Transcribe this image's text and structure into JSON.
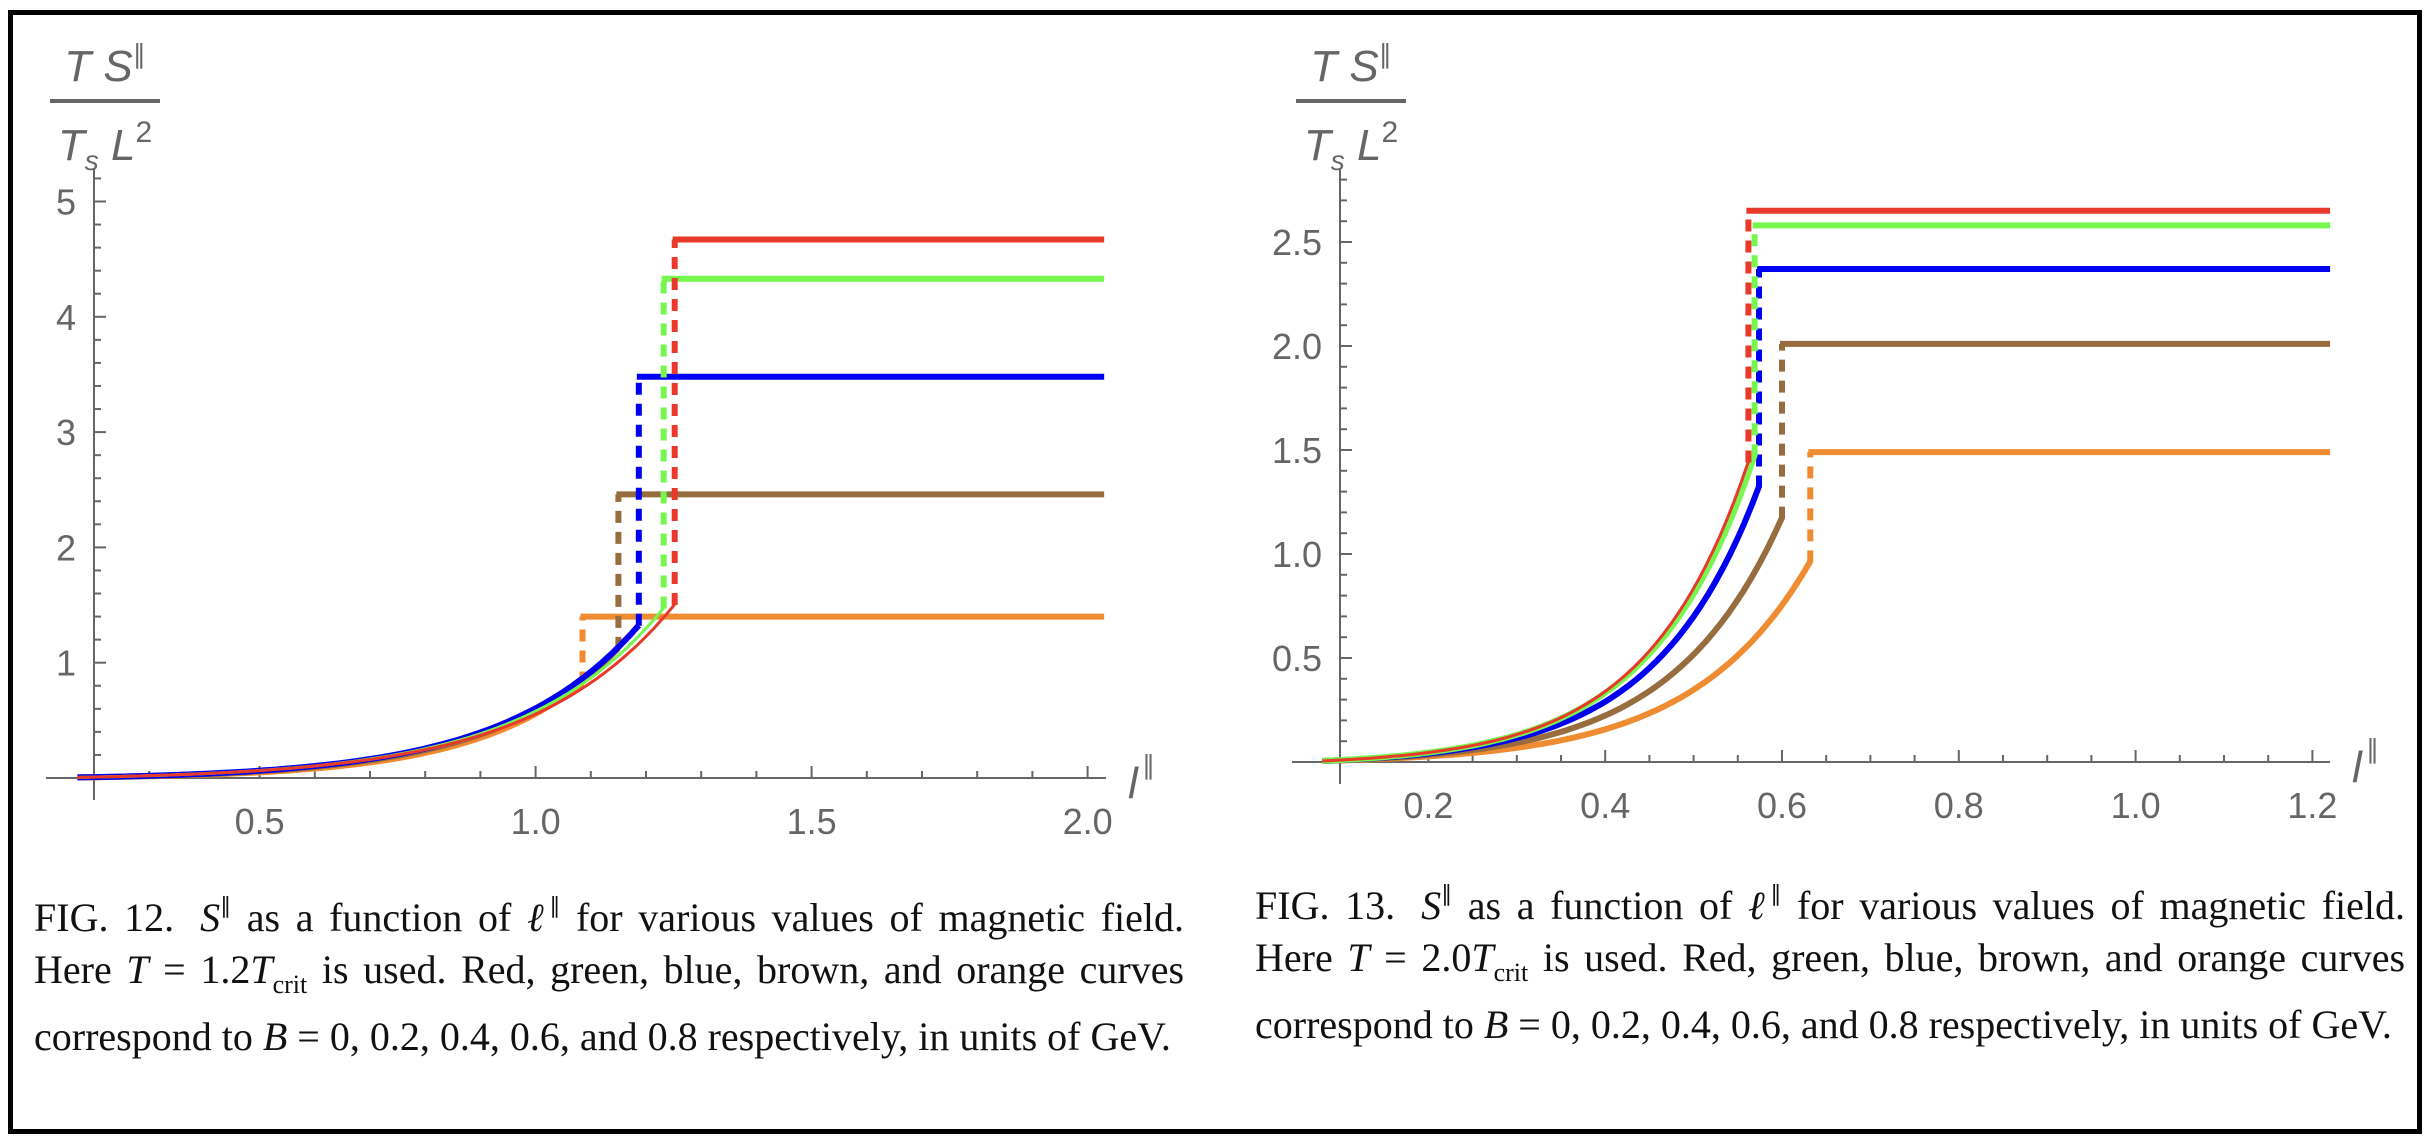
{
  "chart_data": [
    {
      "type": "line",
      "figure_label": "FIG. 12.",
      "ylabel": {
        "num_T": "T",
        "num_S": "S",
        "num_sup": "∥",
        "den_T": "T",
        "den_sub": "s",
        "den_L": "L",
        "den_sup": "2"
      },
      "xlabel": {
        "base": "l",
        "sup": "∥"
      },
      "xlim": [
        0.2,
        2.03
      ],
      "ylim": [
        0,
        5.3
      ],
      "xticks": [
        0.5,
        1.0,
        1.5,
        2.0
      ],
      "xtick_labels": [
        "0.5",
        "1.0",
        "1.5",
        "2.0"
      ],
      "xminor_step": 0.1,
      "yticks": [
        1,
        2,
        3,
        4,
        5
      ],
      "ytick_labels": [
        "1",
        "2",
        "3",
        "4",
        "5"
      ],
      "yminor_step": 0.2,
      "grid": false,
      "curve_start_x": 0.17,
      "series": [
        {
          "name": "B = 0",
          "color": "#E8392A",
          "transition_x": 1.252,
          "curve_end_y": 1.5,
          "plateau_y": 4.67,
          "curve_coef": 0.0,
          "stroke": "thin"
        },
        {
          "name": "B = 0.2",
          "color": "#77F64F",
          "transition_x": 1.232,
          "curve_end_y": 1.47,
          "plateau_y": 4.33,
          "stroke": "thin"
        },
        {
          "name": "B = 0.4",
          "color": "#0000F0",
          "transition_x": 1.187,
          "curve_end_y": 1.32,
          "plateau_y": 3.48,
          "stroke": "thick"
        },
        {
          "name": "B = 0.6",
          "color": "#976C3E",
          "transition_x": 1.15,
          "curve_end_y": 1.12,
          "plateau_y": 2.46,
          "stroke": "thick"
        },
        {
          "name": "B = 0.8",
          "color": "#EF8B30",
          "transition_x": 1.085,
          "curve_end_y": 0.82,
          "plateau_y": 1.4,
          "stroke": "thick"
        }
      ]
    },
    {
      "type": "line",
      "figure_label": "FIG. 13.",
      "ylabel": {
        "num_T": "T",
        "num_S": "S",
        "num_sup": "∥",
        "den_T": "T",
        "den_sub": "s",
        "den_L": "L",
        "den_sup": "2"
      },
      "xlabel": {
        "base": "l",
        "sup": "∥"
      },
      "xlim": [
        0.1,
        1.22
      ],
      "ylim": [
        0,
        2.85
      ],
      "xticks": [
        0.2,
        0.4,
        0.6,
        0.8,
        1.0,
        1.2
      ],
      "xtick_labels": [
        "0.2",
        "0.4",
        "0.6",
        "0.8",
        "1.0",
        "1.2"
      ],
      "xminor_step": 0.05,
      "yticks": [
        0.5,
        1.0,
        1.5,
        2.0,
        2.5
      ],
      "ytick_labels": [
        "0.5",
        "1.0",
        "1.5",
        "2.0",
        "2.5"
      ],
      "yminor_step": 0.1,
      "grid": false,
      "curve_start_x": 0.08,
      "series": [
        {
          "name": "B = 0",
          "color": "#E8392A",
          "transition_x": 0.562,
          "curve_end_y": 1.44,
          "plateau_y": 2.65,
          "stroke": "thin"
        },
        {
          "name": "B = 0.2",
          "color": "#77F64F",
          "transition_x": 0.569,
          "curve_end_y": 1.47,
          "plateau_y": 2.58,
          "stroke": "thick"
        },
        {
          "name": "B = 0.4",
          "color": "#0000F0",
          "transition_x": 0.574,
          "curve_end_y": 1.32,
          "plateau_y": 2.37,
          "stroke": "thick"
        },
        {
          "name": "B = 0.6",
          "color": "#976C3E",
          "transition_x": 0.6,
          "curve_end_y": 1.17,
          "plateau_y": 2.01,
          "stroke": "thick"
        },
        {
          "name": "B = 0.8",
          "color": "#EF8B30",
          "transition_x": 0.632,
          "curve_end_y": 0.96,
          "plateau_y": 1.49,
          "stroke": "thick"
        }
      ]
    }
  ],
  "captions": [
    {
      "fig": "FIG. 12.",
      "S": "S",
      "S_sup": "∥",
      "t1": " as a function of ",
      "ell": "ℓ",
      "ell_sup": "∥",
      "t2": " for various values of magnetic field. Here ",
      "T": "T",
      "t3": " = 1.2",
      "Tcrit": "T",
      "crit": "crit",
      "t4": " is used. Red, green, blue, brown, and orange curves correspond to ",
      "B": "B",
      "t5": " = 0, 0.2, 0.4, 0.6, and 0.8 respectively, in units of GeV."
    },
    {
      "fig": "FIG. 13.",
      "S": "S",
      "S_sup": "∥",
      "t1": " as a function of ",
      "ell": "ℓ",
      "ell_sup": "∥",
      "t2": " for various values of magnetic field. Here ",
      "T": "T",
      "t3": " = 2.0",
      "Tcrit": "T",
      "crit": "crit",
      "t4": " is used. Red, green, blue, brown, and orange curves correspond to ",
      "B": "B",
      "t5": " = 0, 0.2, 0.4, 0.6, and 0.8 respectively, in units of GeV."
    }
  ]
}
